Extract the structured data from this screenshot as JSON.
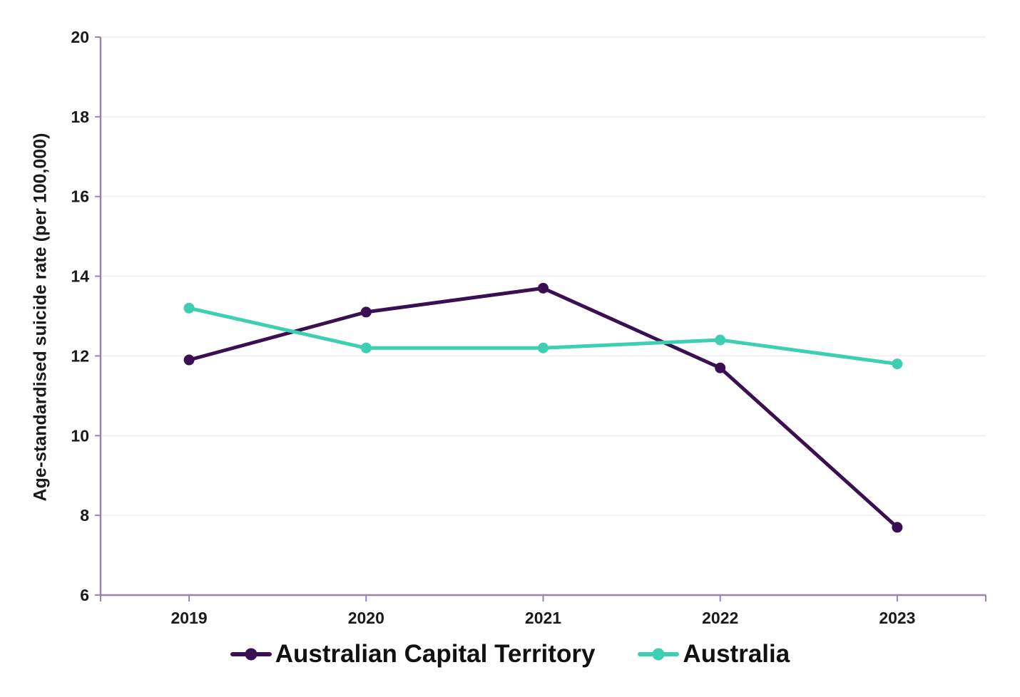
{
  "chart_data": {
    "type": "line",
    "title": "",
    "xlabel": "",
    "ylabel": "Age-standardised suicide rate (per 100,000)",
    "categories": [
      "2019",
      "2020",
      "2021",
      "2022",
      "2023"
    ],
    "series": [
      {
        "name": "Australian Capital Territory",
        "color": "#3B1053",
        "values": [
          11.9,
          13.1,
          13.7,
          11.7,
          7.7
        ]
      },
      {
        "name": "Australia",
        "color": "#3CCFB2",
        "values": [
          13.2,
          12.2,
          12.2,
          12.4,
          11.8
        ]
      }
    ],
    "ylim": [
      6,
      20
    ],
    "yticks": [
      6,
      8,
      10,
      12,
      14,
      16,
      18,
      20
    ],
    "grid": "horizontal-only",
    "legend_position": "bottom-center",
    "marker": "circle",
    "axis_color": "#9A82B5",
    "gridline_color": "#EFEFEF",
    "tick_label_color": "#1A1A1A"
  }
}
